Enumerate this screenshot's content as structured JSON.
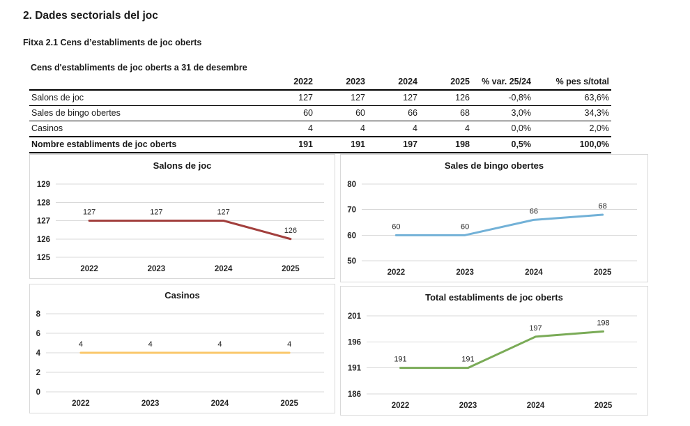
{
  "page": {
    "heading": "2. Dades sectorials del joc",
    "subheading": "Fitxa 2.1 Cens d’establiments de joc oberts"
  },
  "table": {
    "title": "Cens d'establiments de joc oberts a 31 de desembre",
    "columns": [
      "",
      "2022",
      "2023",
      "2024",
      "2025",
      "% var. 25/24",
      "% pes s/total"
    ],
    "rows": [
      {
        "label": "Salons de joc",
        "values": [
          "127",
          "127",
          "127",
          "126",
          "-0,8%",
          "63,6%"
        ],
        "bold": false
      },
      {
        "label": "Sales de bingo obertes",
        "values": [
          "60",
          "60",
          "66",
          "68",
          "3,0%",
          "34,3%"
        ],
        "bold": false
      },
      {
        "label": "Casinos",
        "values": [
          "4",
          "4",
          "4",
          "4",
          "0,0%",
          "2,0%"
        ],
        "bold": false
      },
      {
        "label": "Nombre establiments  de joc oberts",
        "values": [
          "191",
          "191",
          "197",
          "198",
          "0,5%",
          "100,0%"
        ],
        "bold": true
      }
    ]
  },
  "chart_data": [
    {
      "type": "line",
      "title": "Salons de joc",
      "categories": [
        "2022",
        "2023",
        "2024",
        "2025"
      ],
      "values": [
        127,
        127,
        127,
        126
      ],
      "yticks": [
        125,
        126,
        127,
        128,
        129
      ],
      "ylim": [
        125,
        129
      ],
      "color": "#a23f3d",
      "grid": true,
      "legend": false,
      "xlabel": "",
      "ylabel": ""
    },
    {
      "type": "line",
      "title": "Sales de bingo obertes",
      "categories": [
        "2022",
        "2023",
        "2024",
        "2025"
      ],
      "values": [
        60,
        60,
        66,
        68
      ],
      "yticks": [
        50,
        60,
        70,
        80
      ],
      "ylim": [
        50,
        80
      ],
      "color": "#72b1d7",
      "grid": true,
      "legend": false,
      "xlabel": "",
      "ylabel": ""
    },
    {
      "type": "line",
      "title": "Casinos",
      "categories": [
        "2022",
        "2023",
        "2024",
        "2025"
      ],
      "values": [
        4,
        4,
        4,
        4
      ],
      "yticks": [
        0,
        2,
        4,
        6,
        8
      ],
      "ylim": [
        0,
        8
      ],
      "color": "#fac76a",
      "grid": true,
      "legend": false,
      "xlabel": "",
      "ylabel": ""
    },
    {
      "type": "line",
      "title": "Total establiments de joc oberts",
      "categories": [
        "2022",
        "2023",
        "2024",
        "2025"
      ],
      "values": [
        191,
        191,
        197,
        198
      ],
      "yticks": [
        186,
        191,
        196,
        201
      ],
      "ylim": [
        186,
        201
      ],
      "color": "#7aab57",
      "grid": true,
      "legend": false,
      "xlabel": "",
      "ylabel": ""
    }
  ]
}
